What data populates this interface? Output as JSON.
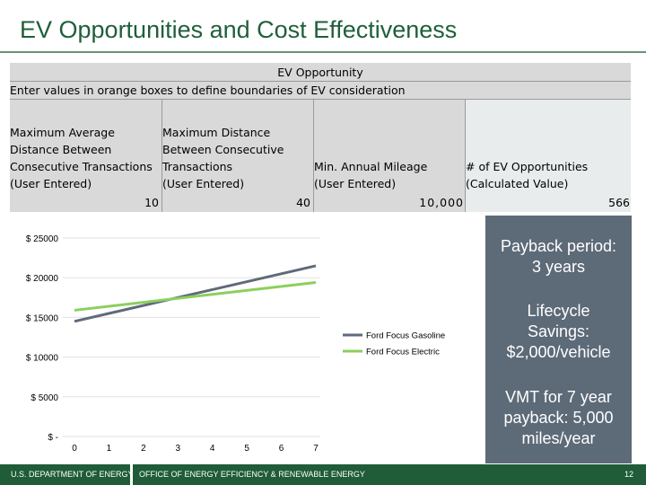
{
  "title": "EV Opportunities and Cost Effectiveness",
  "table": {
    "heading": "EV Opportunity",
    "instruction": "Enter values in orange boxes to define boundaries of EV consideration",
    "columns": [
      {
        "label": "Maximum Average\nDistance Between\nConsecutive Transactions\n(User Entered)",
        "value": "10"
      },
      {
        "label": "Maximum Distance\nBetween Consecutive\nTransactions\n(User Entered)",
        "value": "40"
      },
      {
        "label": "Min. Annual Mileage\n(User Entered)",
        "value": "10,000"
      },
      {
        "label": "# of EV Opportunities\n(Calculated Value)",
        "value": "566"
      }
    ]
  },
  "side_panel": {
    "payback": "Payback period: 3 years",
    "lifecycle": "Lifecycle Savings: $2,000/vehicle",
    "vmt": "VMT for 7 year payback: 5,000 miles/year"
  },
  "chart_data": {
    "type": "line",
    "x": [
      0,
      7
    ],
    "series": [
      {
        "name": "Ford Focus Gasoline",
        "color": "#5f6a7a",
        "values": [
          14500,
          21500
        ]
      },
      {
        "name": "Ford Focus Electric",
        "color": "#8ccf5e",
        "values": [
          15900,
          19400
        ]
      }
    ],
    "ytick_labels": [
      "$ 25000",
      "$ 20000",
      "$ 15000",
      "$ 10000",
      "$ 5000",
      "$ -"
    ],
    "ytick_values": [
      25000,
      20000,
      15000,
      10000,
      5000,
      0
    ],
    "xtick_labels": [
      "0",
      "1",
      "2",
      "3",
      "4",
      "5",
      "6",
      "7"
    ],
    "ylim": [
      0,
      25000
    ],
    "xlim": [
      0,
      7
    ],
    "legend_position": "right"
  },
  "footer": {
    "org": "U.S. DEPARTMENT OF ENERGY",
    "office": "OFFICE OF ENERGY EFFICIENCY & RENEWABLE ENERGY",
    "page": "12"
  }
}
